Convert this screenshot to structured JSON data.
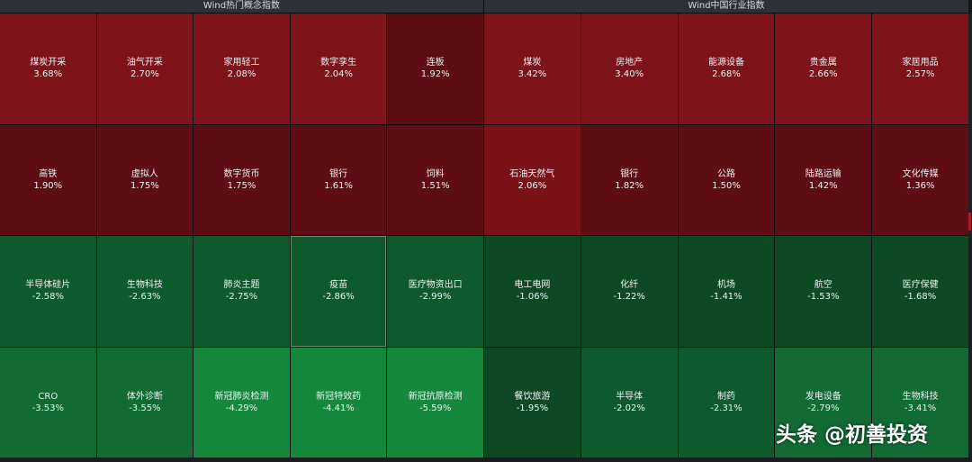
{
  "left_panel": {
    "title": "Wind热门概念指数",
    "tiles": [
      {
        "name": "煤炭开采",
        "change": "3.68%",
        "color": "#7e1419"
      },
      {
        "name": "油气开采",
        "change": "2.70%",
        "color": "#7e1419"
      },
      {
        "name": "家用轻工",
        "change": "2.08%",
        "color": "#7e1419"
      },
      {
        "name": "数字孪生",
        "change": "2.04%",
        "color": "#7e1419"
      },
      {
        "name": "连板",
        "change": "1.92%",
        "color": "#5e0e13"
      },
      {
        "name": "高铁",
        "change": "1.90%",
        "color": "#5e0e13"
      },
      {
        "name": "虚拟人",
        "change": "1.75%",
        "color": "#5e0e13"
      },
      {
        "name": "数字货币",
        "change": "1.75%",
        "color": "#5e0e13"
      },
      {
        "name": "银行",
        "change": "1.61%",
        "color": "#5e0e13"
      },
      {
        "name": "饲料",
        "change": "1.51%",
        "color": "#5e0e13"
      },
      {
        "name": "半导体硅片",
        "change": "-2.58%",
        "color": "#0f5a2c"
      },
      {
        "name": "生物科技",
        "change": "-2.63%",
        "color": "#0f5a2c"
      },
      {
        "name": "肺炎主题",
        "change": "-2.75%",
        "color": "#0f5a2c"
      },
      {
        "name": "疫苗",
        "change": "-2.86%",
        "color": "#0f5a2c",
        "highlight": true
      },
      {
        "name": "医疗物资出口",
        "change": "-2.99%",
        "color": "#0f5a2c"
      },
      {
        "name": "CRO",
        "change": "-3.53%",
        "color": "#116b33"
      },
      {
        "name": "体外诊断",
        "change": "-3.55%",
        "color": "#116b33"
      },
      {
        "name": "新冠肺炎检测",
        "change": "-4.29%",
        "color": "#15883e"
      },
      {
        "name": "新冠特效药",
        "change": "-4.41%",
        "color": "#15883e"
      },
      {
        "name": "新冠抗原检测",
        "change": "-5.59%",
        "color": "#15883e"
      }
    ]
  },
  "right_panel": {
    "title": "Wind中国行业指数",
    "tiles": [
      {
        "name": "煤炭",
        "change": "3.42%",
        "color": "#7e1419"
      },
      {
        "name": "房地产",
        "change": "3.40%",
        "color": "#7e1419"
      },
      {
        "name": "能源设备",
        "change": "2.68%",
        "color": "#7e1419"
      },
      {
        "name": "贵金属",
        "change": "2.66%",
        "color": "#7e1419"
      },
      {
        "name": "家居用品",
        "change": "2.57%",
        "color": "#7e1419"
      },
      {
        "name": "石油天然气",
        "change": "2.06%",
        "color": "#7a1218"
      },
      {
        "name": "银行",
        "change": "1.82%",
        "color": "#5e0e13"
      },
      {
        "name": "公路",
        "change": "1.50%",
        "color": "#5e0e13"
      },
      {
        "name": "陆路运输",
        "change": "1.42%",
        "color": "#5e0e13"
      },
      {
        "name": "文化传媒",
        "change": "1.36%",
        "color": "#5e0e13"
      },
      {
        "name": "电工电网",
        "change": "-1.06%",
        "color": "#0d4a24"
      },
      {
        "name": "化纤",
        "change": "-1.22%",
        "color": "#0d4a24"
      },
      {
        "name": "机场",
        "change": "-1.41%",
        "color": "#0d4a24"
      },
      {
        "name": "航空",
        "change": "-1.53%",
        "color": "#0d4a24"
      },
      {
        "name": "医疗保健",
        "change": "-1.68%",
        "color": "#0d4a24"
      },
      {
        "name": "餐饮旅游",
        "change": "-1.95%",
        "color": "#0d4a24"
      },
      {
        "name": "半导体",
        "change": "-2.02%",
        "color": "#0f5a2c"
      },
      {
        "name": "制药",
        "change": "-2.31%",
        "color": "#0f5a2c"
      },
      {
        "name": "发电设备",
        "change": "-2.79%",
        "color": "#116b33"
      },
      {
        "name": "生物科技",
        "change": "-3.41%",
        "color": "#116b33"
      }
    ]
  },
  "watermark": {
    "text": "头条 @初善投资"
  }
}
